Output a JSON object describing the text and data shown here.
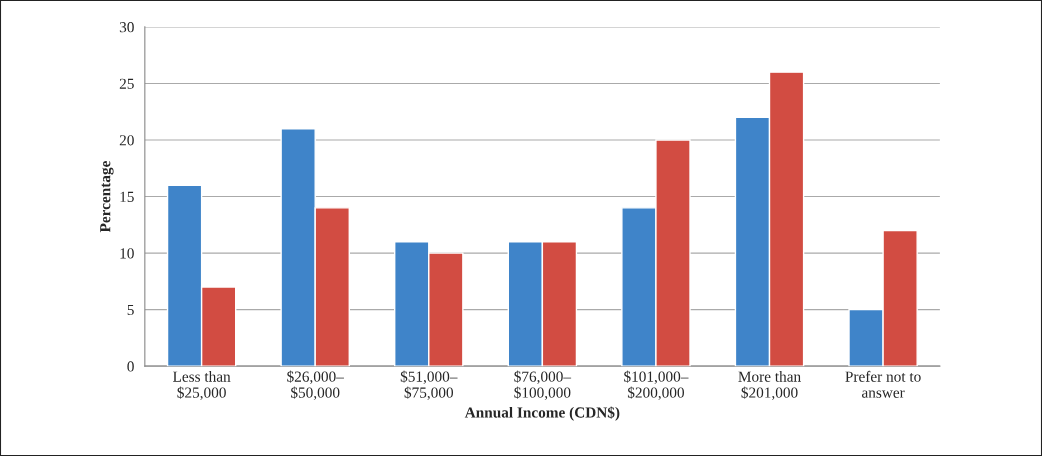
{
  "chart_data": {
    "type": "bar",
    "xlabel": "Annual Income (CDN$)",
    "ylabel": "Percentage",
    "categories": [
      "Less than\n$25,000",
      "$26,000–\n$50,000",
      "$51,000–\n$75,000",
      "$76,000–\n$100,000",
      "$101,000–\n$200,000",
      "More than\n$201,000",
      "Prefer not to\nanswer"
    ],
    "series": [
      {
        "color": "#3f84c9",
        "values": [
          16,
          21,
          11,
          11,
          14,
          22,
          5
        ]
      },
      {
        "color": "#d24c42",
        "values": [
          7,
          14,
          10,
          11,
          20,
          26,
          12
        ]
      }
    ],
    "ylim": [
      0,
      30
    ],
    "yticks": [
      0,
      5,
      10,
      15,
      20,
      25,
      30
    ],
    "grid": "y",
    "legend": false
  }
}
